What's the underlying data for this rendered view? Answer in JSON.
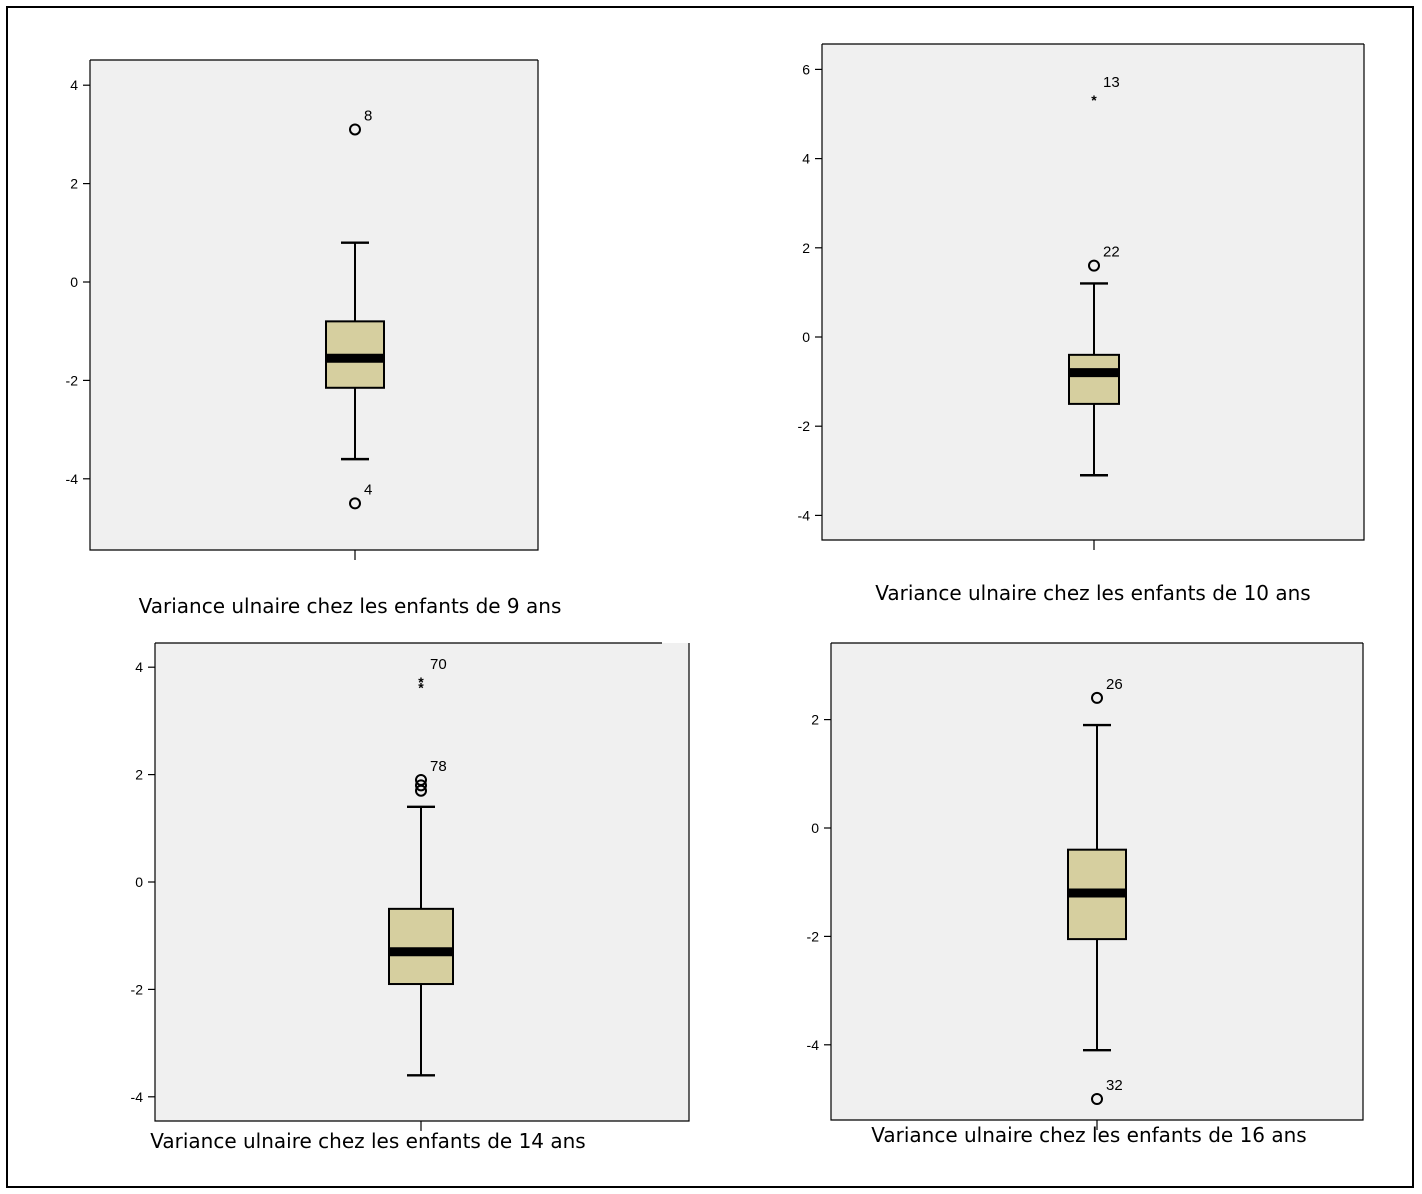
{
  "chart_data": [
    {
      "type": "boxplot",
      "title": "",
      "caption": "Variance ulnaire chez les enfants  de 9 ans",
      "ylim": [
        -5.4,
        5.0
      ],
      "yticks": [
        "4",
        "2",
        "0",
        "-2",
        "-4"
      ],
      "box": {
        "whisker_low": -3.6,
        "q1": -2.15,
        "median": -1.55,
        "q3": -0.8,
        "whisker_high": 0.8
      },
      "outliers": [
        {
          "value": 3.1,
          "label": "8",
          "marker": "circle"
        },
        {
          "value": -4.5,
          "label": "4",
          "marker": "circle"
        }
      ],
      "colors": {
        "box": "#d6cf9f",
        "plot_bg": "#f0f0f0"
      }
    },
    {
      "type": "boxplot",
      "title": "",
      "caption": "Variance ulnaire chez les enfants de 10 ans",
      "ylim": [
        -4.6,
        6.6
      ],
      "yticks": [
        "6",
        "4",
        "2",
        "0",
        "-2",
        "-4"
      ],
      "box": {
        "whisker_low": -3.1,
        "q1": -1.5,
        "median": -0.8,
        "q3": -0.4,
        "whisker_high": 1.2
      },
      "outliers": [
        {
          "value": 5.4,
          "label": "13",
          "marker": "star"
        },
        {
          "value": 1.6,
          "label": "22",
          "marker": "circle"
        }
      ],
      "colors": {
        "box": "#d6cf9f",
        "plot_bg": "#f0f0f0"
      }
    },
    {
      "type": "boxplot",
      "title": "",
      "caption": "Variance ulnaire chez les enfants de 14 ans",
      "ylim": [
        -4.4,
        4.5
      ],
      "yticks": [
        "4",
        "2",
        "0",
        "-2",
        "-4"
      ],
      "box": {
        "whisker_low": -3.6,
        "q1": -1.9,
        "median": -1.3,
        "q3": -0.5,
        "whisker_high": 1.4
      },
      "outliers": [
        {
          "value": 3.8,
          "label": "70",
          "marker": "star"
        },
        {
          "value": 3.7,
          "label": "",
          "marker": "star"
        },
        {
          "value": 1.9,
          "label": "78",
          "marker": "circle"
        },
        {
          "value": 1.8,
          "label": "",
          "marker": "circle"
        },
        {
          "value": 1.7,
          "label": "",
          "marker": "circle"
        }
      ],
      "colors": {
        "box": "#d6cf9f",
        "plot_bg": "#f0f0f0"
      }
    },
    {
      "type": "boxplot",
      "title": "",
      "caption": "Variance ulnaire chez les enfants de 16 ans",
      "ylim": [
        -5.4,
        3.4
      ],
      "yticks": [
        "2",
        "0",
        "-2",
        "-4"
      ],
      "box": {
        "whisker_low": -4.1,
        "q1": -2.05,
        "median": -1.2,
        "q3": -0.4,
        "whisker_high": 1.9
      },
      "outliers": [
        {
          "value": 2.4,
          "label": "26",
          "marker": "circle"
        },
        {
          "value": -5.0,
          "label": "32",
          "marker": "circle"
        }
      ],
      "colors": {
        "box": "#d6cf9f",
        "plot_bg": "#f0f0f0"
      }
    }
  ]
}
